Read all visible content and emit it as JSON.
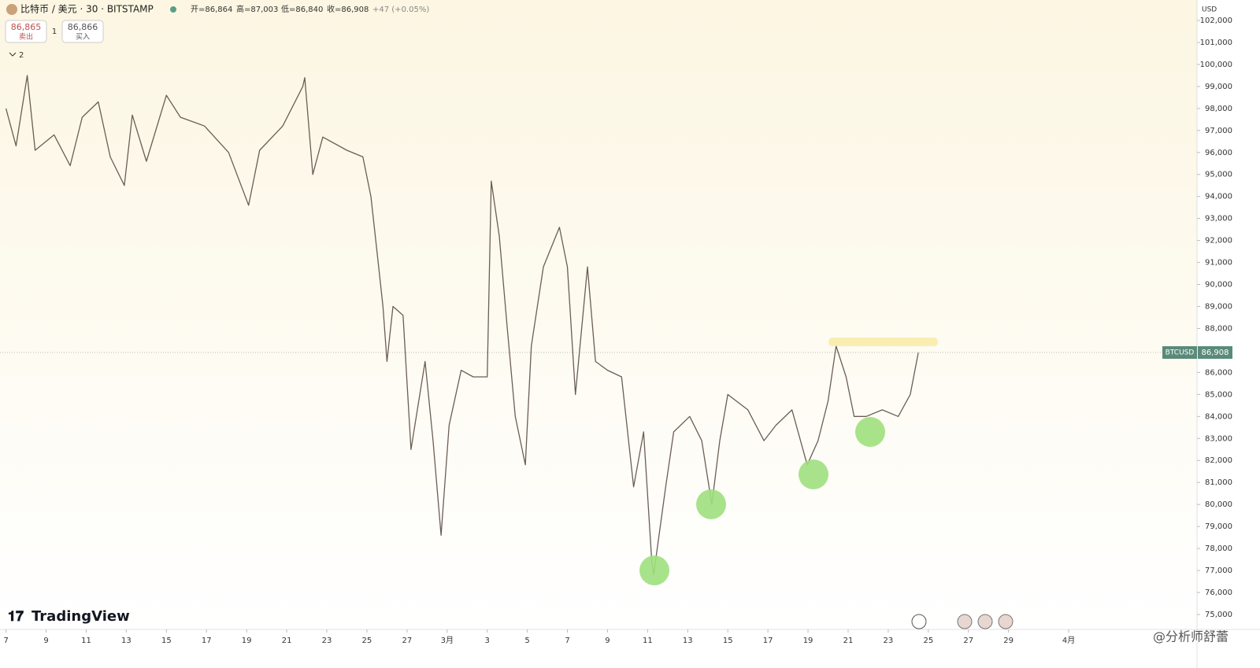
{
  "chart_data": {
    "type": "line",
    "x": [
      0,
      0.5,
      1.06,
      1.45,
      2.4,
      3.2,
      3.8,
      4.6,
      5.2,
      5.9,
      6.3,
      7,
      8,
      8.7,
      9.9,
      11.1,
      12.1,
      12.65,
      13.8,
      14.8,
      14.9,
      15.3,
      15.8,
      17,
      17.8,
      18.2,
      18.5,
      18.8,
      19,
      19.3,
      19.8,
      20.2,
      20.9,
      21.3,
      21.7,
      22.1,
      22.7,
      23.3,
      24,
      24.2,
      24.6,
      25,
      25.4,
      25.9,
      26.2,
      26.8,
      27.6,
      28,
      28.4,
      29,
      29.4,
      30,
      30.7,
      31.3,
      31.8,
      32.2,
      32.3,
      32.9,
      33.3,
      34.1,
      34.7,
      35.2,
      35.6,
      36,
      37,
      37.8,
      38.4,
      39.2,
      39.96,
      40.5,
      41,
      41.4,
      41.9,
      42.3,
      42.9,
      43.7,
      44.5,
      45.1,
      45.5
    ],
    "series": [
      {
        "name": "BTCUSD",
        "color": "#6b5e55",
        "values": [
          98000,
          96300,
          99500,
          96100,
          96800,
          95400,
          97600,
          98300,
          95800,
          94500,
          97700,
          95600,
          98600,
          97600,
          97200,
          96000,
          93600,
          96100,
          97200,
          99000,
          99400,
          95000,
          96700,
          96100,
          95800,
          94000,
          91500,
          89000,
          86500,
          89000,
          88600,
          82500,
          86500,
          82900,
          78600,
          83600,
          86100,
          85800,
          85800,
          94700,
          92200,
          88000,
          84000,
          81800,
          87200,
          90800,
          92600,
          90800,
          85000,
          90800,
          86500,
          86100,
          85800,
          80800,
          83300,
          77500,
          76800,
          80800,
          83300,
          84000,
          82900,
          80000,
          82900,
          85000,
          84300,
          82900,
          83600,
          84300,
          81800,
          82900,
          84700,
          87200,
          85800,
          84000,
          84000,
          84300,
          84000,
          85000,
          86900
        ]
      }
    ],
    "xlim": [
      -0.3,
      59.4
    ],
    "ylim": [
      74320,
      102930
    ],
    "xticks": [
      {
        "value": 0,
        "label": "7"
      },
      {
        "value": 2,
        "label": "9"
      },
      {
        "value": 4,
        "label": "11"
      },
      {
        "value": 6,
        "label": "13"
      },
      {
        "value": 8,
        "label": "15"
      },
      {
        "value": 10,
        "label": "17"
      },
      {
        "value": 12,
        "label": "19"
      },
      {
        "value": 14,
        "label": "21"
      },
      {
        "value": 16,
        "label": "23"
      },
      {
        "value": 18,
        "label": "25"
      },
      {
        "value": 20,
        "label": "27"
      },
      {
        "value": 22,
        "label": "3月"
      },
      {
        "value": 24,
        "label": "3"
      },
      {
        "value": 26,
        "label": "5"
      },
      {
        "value": 28,
        "label": "7"
      },
      {
        "value": 30,
        "label": "9"
      },
      {
        "value": 32,
        "label": "11"
      },
      {
        "value": 34,
        "label": "13"
      },
      {
        "value": 36,
        "label": "15"
      },
      {
        "value": 38,
        "label": "17"
      },
      {
        "value": 40,
        "label": "19"
      },
      {
        "value": 42,
        "label": "21"
      },
      {
        "value": 44,
        "label": "23"
      },
      {
        "value": 46,
        "label": "25"
      },
      {
        "value": 48,
        "label": "27"
      },
      {
        "value": 50,
        "label": "29"
      },
      {
        "value": 53,
        "label": "4月"
      }
    ],
    "yticks": [
      {
        "value": 75000,
        "label": "75,000"
      },
      {
        "value": 76000,
        "label": "76,000"
      },
      {
        "value": 77000,
        "label": "77,000"
      },
      {
        "value": 78000,
        "label": "78,000"
      },
      {
        "value": 79000,
        "label": "79,000"
      },
      {
        "value": 80000,
        "label": "80,000"
      },
      {
        "value": 81000,
        "label": "81,000"
      },
      {
        "value": 82000,
        "label": "82,000"
      },
      {
        "value": 83000,
        "label": "83,000"
      },
      {
        "value": 84000,
        "label": "84,000"
      },
      {
        "value": 85000,
        "label": "85,000"
      },
      {
        "value": 86000,
        "label": "86,000"
      },
      {
        "value": 88000,
        "label": "88,000"
      },
      {
        "value": 89000,
        "label": "89,000"
      },
      {
        "value": 90000,
        "label": "90,000"
      },
      {
        "value": 91000,
        "label": "91,000"
      },
      {
        "value": 92000,
        "label": "92,000"
      },
      {
        "value": 93000,
        "label": "93,000"
      },
      {
        "value": 94000,
        "label": "94,000"
      },
      {
        "value": 95000,
        "label": "95,000"
      },
      {
        "value": 96000,
        "label": "96,000"
      },
      {
        "value": 97000,
        "label": "97,000"
      },
      {
        "value": 98000,
        "label": "98,000"
      },
      {
        "value": 99000,
        "label": "99,000"
      },
      {
        "value": 100000,
        "label": "100,000"
      },
      {
        "value": 101000,
        "label": "101,000"
      },
      {
        "value": 102000,
        "label": "102,000"
      }
    ],
    "last_price": {
      "value": 86908,
      "label": "86,908"
    },
    "last_symbol": "BTCUSD"
  },
  "ui": {
    "symbol": "比特币 / 美元 · 30 · BITSTAMP",
    "open": "开=86,864",
    "high": "高=87,003",
    "low": "低=86,840",
    "close": "收=86,908",
    "change": "+47 (+0.05%)",
    "sell_price": "86,865",
    "sell_label": "卖出",
    "quantity": "1",
    "buy_price": "86,866",
    "buy_label": "买入",
    "indicators": "2",
    "currency": "USD",
    "logo": "TradingView",
    "watermark": "@分析师舒蕾"
  }
}
